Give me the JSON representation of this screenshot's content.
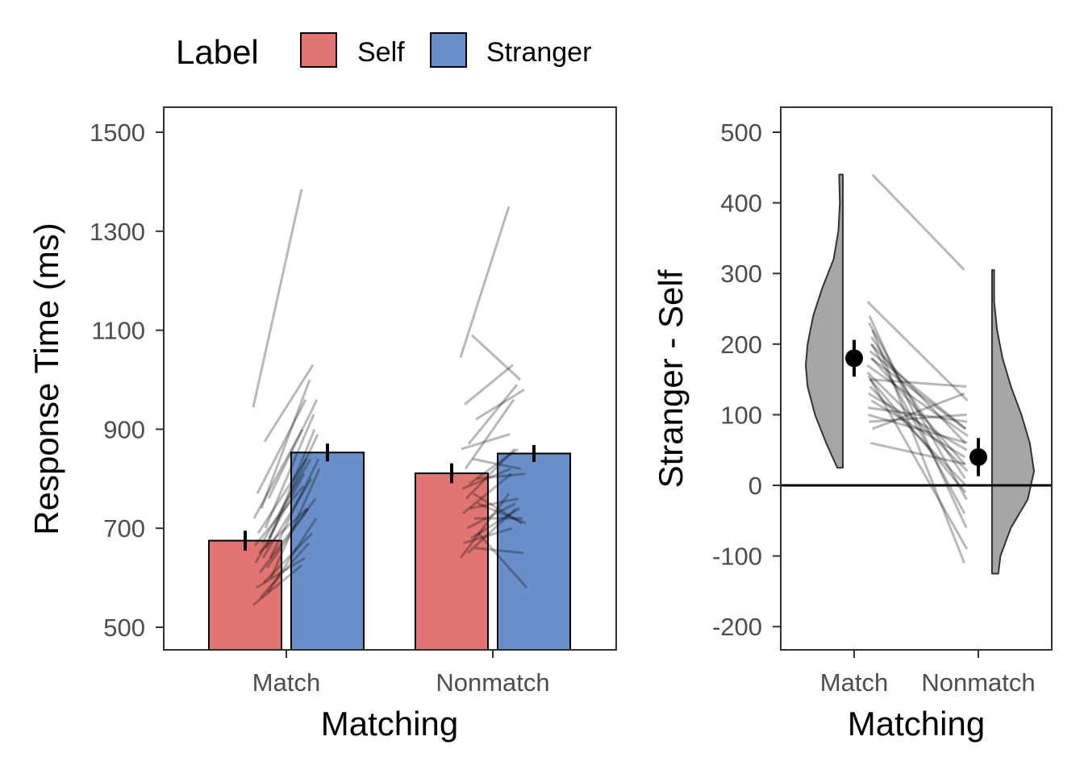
{
  "chart_data": [
    {
      "type": "bar",
      "title": "",
      "xlabel": "Matching",
      "ylabel": "Response Time (ms)",
      "ylim": [
        450,
        1550
      ],
      "yticks": [
        "500",
        "700",
        "900",
        "1100",
        "1300",
        "1500"
      ],
      "categories": [
        "Match",
        "Nonmatch"
      ],
      "legend": {
        "title": "Label",
        "placement": "top",
        "entries": [
          "Self",
          "Stranger"
        ]
      },
      "series": [
        {
          "name": "Self",
          "color": "#E07572",
          "values": [
            675,
            811
          ],
          "se": [
            20,
            20
          ]
        },
        {
          "name": "Stranger",
          "color": "#6A8FC8",
          "values": [
            853,
            851
          ],
          "se": [
            18,
            17
          ]
        }
      ],
      "participants": {
        "match_self": [
          945,
          875,
          770,
          760,
          740,
          720,
          700,
          690,
          680,
          670,
          665,
          660,
          650,
          640,
          640,
          630,
          620,
          610,
          600,
          590,
          580,
          570,
          560,
          545
        ],
        "match_diff": [
          440,
          155,
          190,
          200,
          260,
          180,
          230,
          150,
          210,
          170,
          120,
          240,
          90,
          200,
          160,
          180,
          140,
          130,
          220,
          100,
          60,
          150,
          110,
          80
        ],
        "nonmatch_self": [
          1045,
          1090,
          950,
          920,
          870,
          860,
          840,
          820,
          800,
          790,
          780,
          770,
          760,
          750,
          740,
          730,
          720,
          700,
          690,
          680,
          670,
          660,
          650,
          640
        ],
        "nonmatch_diff": [
          305,
          -90,
          80,
          60,
          120,
          30,
          -20,
          140,
          10,
          70,
          40,
          -60,
          100,
          -40,
          20,
          80,
          0,
          50,
          -110,
          60,
          30,
          -10,
          90,
          130
        ]
      }
    },
    {
      "type": "violin",
      "title": "",
      "xlabel": "Matching",
      "ylabel": "Stranger - Self",
      "ylim": [
        -235,
        535
      ],
      "yticks": [
        "-200",
        "-100",
        "0",
        "100",
        "200",
        "300",
        "400",
        "500"
      ],
      "categories": [
        "Match",
        "Nonmatch"
      ],
      "means": [
        180,
        40
      ],
      "se": [
        26,
        27
      ],
      "reference_line": 0,
      "violins": [
        {
          "category": "Match",
          "side": "left",
          "density": [
            [
              25,
              0.15
            ],
            [
              60,
              0.45
            ],
            [
              100,
              0.75
            ],
            [
              140,
              0.95
            ],
            [
              170,
              1.0
            ],
            [
              200,
              0.95
            ],
            [
              240,
              0.8
            ],
            [
              280,
              0.55
            ],
            [
              320,
              0.25
            ],
            [
              360,
              0.12
            ],
            [
              400,
              0.08
            ],
            [
              440,
              0.1
            ]
          ]
        },
        {
          "category": "Nonmatch",
          "side": "right",
          "density": [
            [
              -125,
              0.15
            ],
            [
              -100,
              0.2
            ],
            [
              -60,
              0.45
            ],
            [
              -20,
              0.85
            ],
            [
              20,
              1.0
            ],
            [
              60,
              0.9
            ],
            [
              100,
              0.7
            ],
            [
              140,
              0.45
            ],
            [
              180,
              0.25
            ],
            [
              220,
              0.12
            ],
            [
              260,
              0.05
            ],
            [
              305,
              0.05
            ]
          ]
        }
      ]
    }
  ]
}
